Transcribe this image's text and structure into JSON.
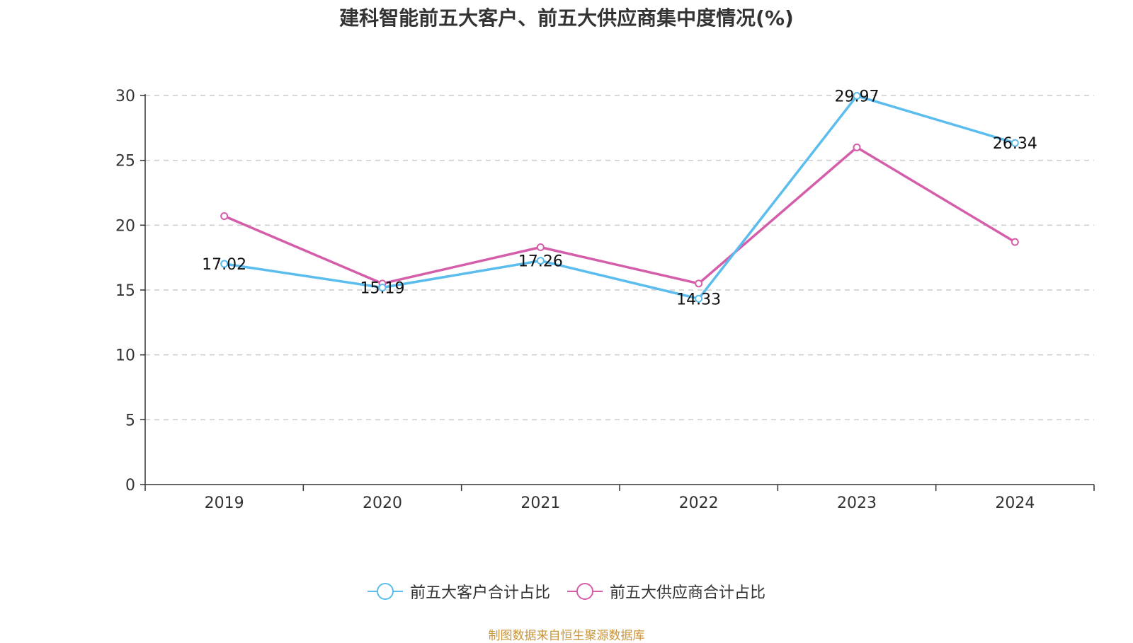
{
  "title": "建科智能前五大客户、前五大供应商集中度情况(%)",
  "source": "制图数据来自恒生聚源数据库",
  "colors": {
    "customers": "#5bbcee",
    "suppliers": "#d45ea9",
    "grid": "#cccccc",
    "axis": "#333333"
  },
  "chart_data": {
    "type": "line",
    "title": "建科智能前五大客户、前五大供应商集中度情况(%)",
    "categories": [
      "2019",
      "2020",
      "2021",
      "2022",
      "2023",
      "2024"
    ],
    "ylim": [
      0,
      30
    ],
    "yticks": [
      0,
      5,
      10,
      15,
      20,
      25,
      30
    ],
    "grid": true,
    "legend_position": "bottom",
    "series": [
      {
        "name": "前五大客户合计占比",
        "values": [
          17.02,
          15.19,
          17.26,
          14.33,
          29.97,
          26.34
        ],
        "labels": [
          "17.02",
          "15.19",
          "17.26",
          "14.33",
          "29.97",
          "26.34"
        ]
      },
      {
        "name": "前五大供应商合计占比",
        "values": [
          20.7,
          15.5,
          18.3,
          15.5,
          26.0,
          18.7
        ]
      }
    ]
  }
}
